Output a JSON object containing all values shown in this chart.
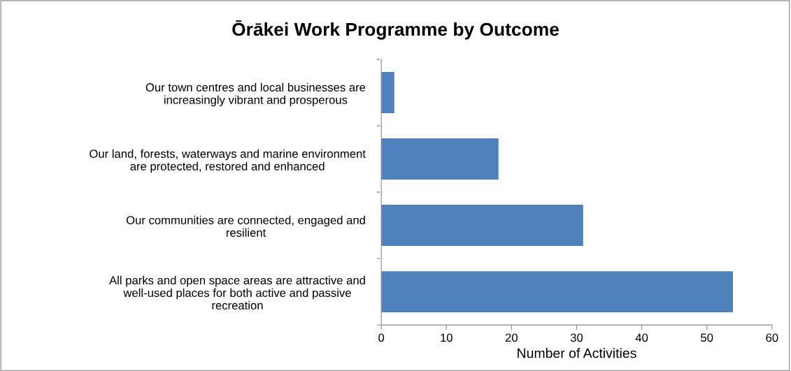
{
  "chart_data": {
    "type": "bar",
    "orientation": "horizontal",
    "title": "Ōrākei Work Programme by Outcome",
    "xlabel": "Number of Activities",
    "categories": [
      "Our town centres and local businesses are\nincreasingly vibrant and prosperous",
      "Our land, forests, waterways and marine environment\nare protected, restored and enhanced",
      "Our communities are connected, engaged and\nresilient",
      "All parks and open space areas are attractive and\nwell-used places for both active and passive\nrecreation"
    ],
    "values": [
      2,
      18,
      31,
      54
    ],
    "color": "#4f81bd",
    "xlim": [
      0,
      60
    ],
    "xticks": [
      0,
      10,
      20,
      30,
      40,
      50,
      60
    ],
    "grid": false,
    "legend": false
  }
}
